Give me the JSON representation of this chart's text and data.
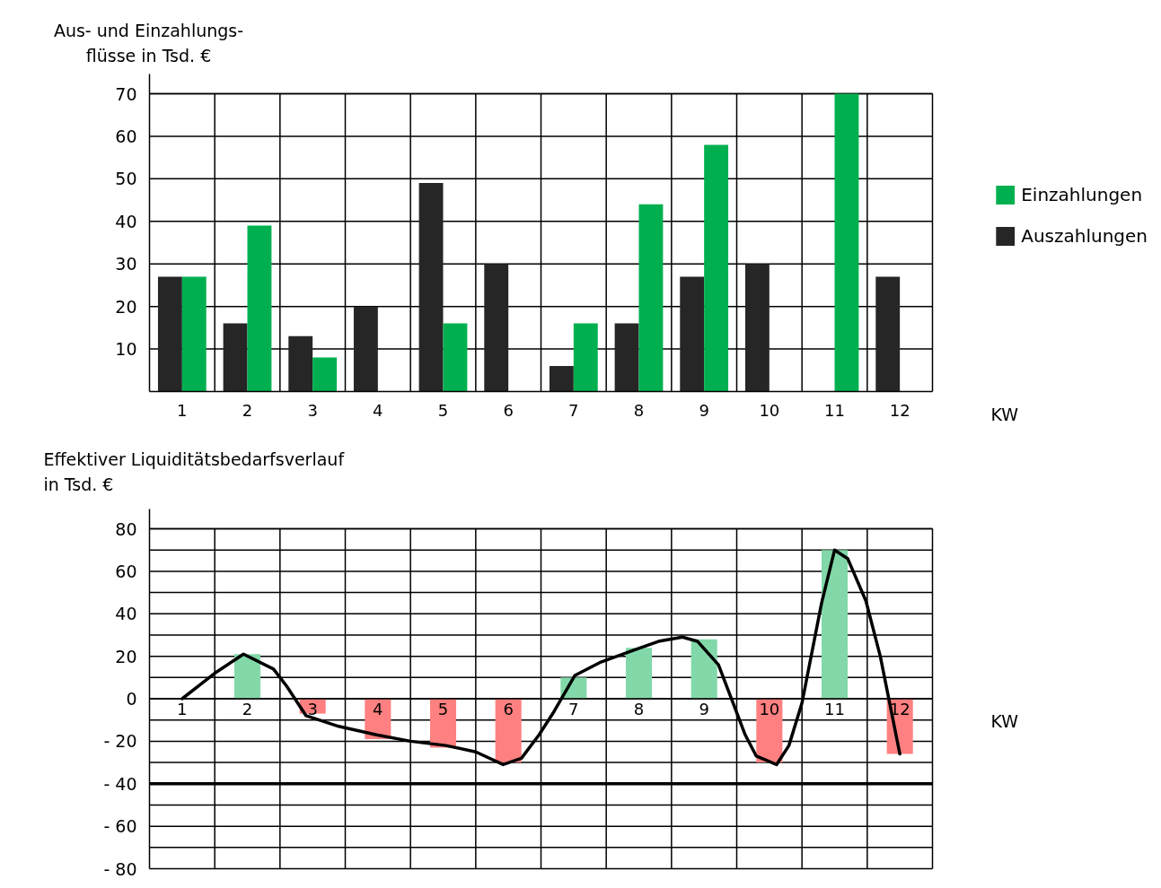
{
  "chart_data": [
    {
      "type": "bar",
      "ylabel": "Aus- und Einzahlungs-\nflüsse in Tsd. €",
      "xlabel": "KW",
      "x": [
        1,
        2,
        3,
        4,
        5,
        6,
        7,
        8,
        9,
        10,
        11,
        12
      ],
      "xlim": [
        0.5,
        12.5
      ],
      "xticks": [
        1,
        2,
        3,
        4,
        5,
        6,
        7,
        8,
        9,
        10,
        11,
        12
      ],
      "ylim": [
        0,
        70
      ],
      "yticks": [
        10,
        20,
        30,
        40,
        50,
        60,
        70
      ],
      "series": [
        {
          "name": "Auszahlungen",
          "color": "#262626",
          "values": [
            27,
            16,
            13,
            20,
            49,
            30,
            6,
            16,
            27,
            30,
            null,
            27
          ]
        },
        {
          "name": "Einzahlungen",
          "color": "#00b050",
          "values": [
            27,
            39,
            8,
            null,
            16,
            null,
            16,
            44,
            58,
            null,
            70,
            null
          ]
        }
      ],
      "grid": true,
      "legend": "right"
    },
    {
      "type": "bar",
      "ylabel": "Effektiver Liquiditätsbedarfsverlauf\nin Tsd. €",
      "xlabel": "KW",
      "x": [
        1,
        2,
        3,
        4,
        5,
        6,
        7,
        8,
        9,
        10,
        11,
        12
      ],
      "xlim": [
        0.5,
        12.5
      ],
      "xticks": [
        1,
        2,
        3,
        4,
        5,
        6,
        7,
        8,
        9,
        10,
        11,
        12
      ],
      "ylim": [
        -80,
        80
      ],
      "yticks": [
        {
          "value": -80,
          "label": "- 80"
        },
        {
          "value": -70,
          "label": null
        },
        {
          "value": -60,
          "label": "- 60"
        },
        {
          "value": -50,
          "label": null
        },
        {
          "value": -40,
          "label": "- 40"
        },
        {
          "value": -30,
          "label": null
        },
        {
          "value": -20,
          "label": "- 20"
        },
        {
          "value": -10,
          "label": null
        },
        0,
        {
          "value": 10,
          "label": null
        },
        20,
        {
          "value": 30,
          "label": null
        },
        40,
        {
          "value": 50,
          "label": null
        },
        60,
        {
          "value": 70,
          "label": null
        },
        80
      ],
      "values": [
        0,
        21,
        -7,
        -19,
        -23,
        -30,
        10,
        24,
        28,
        -30,
        70,
        -26
      ],
      "colors": [
        "#82d8a8",
        "#82d8a8",
        "#ff8080",
        "#ff8080",
        "#ff8080",
        "#ff8080",
        "#82d8a8",
        "#82d8a8",
        "#82d8a8",
        "#ff8080",
        "#82d8a8",
        "#ff8080"
      ],
      "series": [
        {
          "type": "line",
          "color": "#000000",
          "x": [
            1,
            1.5,
            1.94,
            2.4,
            2.6,
            2.9,
            3.4,
            3.98,
            4.5,
            5.04,
            5.5,
            5.92,
            6.2,
            6.47,
            6.7,
            7.02,
            7.4,
            7.93,
            8.3,
            8.67,
            8.9,
            9.22,
            9.63,
            9.8,
            10.11,
            10.3,
            10.5,
            10.8,
            11.0,
            11.2,
            11.48,
            11.7,
            12.0
          ],
          "values": [
            0,
            12,
            21,
            14,
            6,
            -8,
            -13,
            -17,
            -20,
            -22,
            -25,
            -31,
            -28,
            -17,
            -6,
            11,
            17,
            23,
            27,
            29,
            27,
            16,
            -17,
            -27,
            -31,
            -22,
            -2,
            45,
            70,
            66,
            46,
            20,
            -26
          ]
        }
      ],
      "ref_lines": [
        {
          "axis": "y",
          "value": -40,
          "color": "#000000"
        }
      ],
      "grid": true
    }
  ]
}
